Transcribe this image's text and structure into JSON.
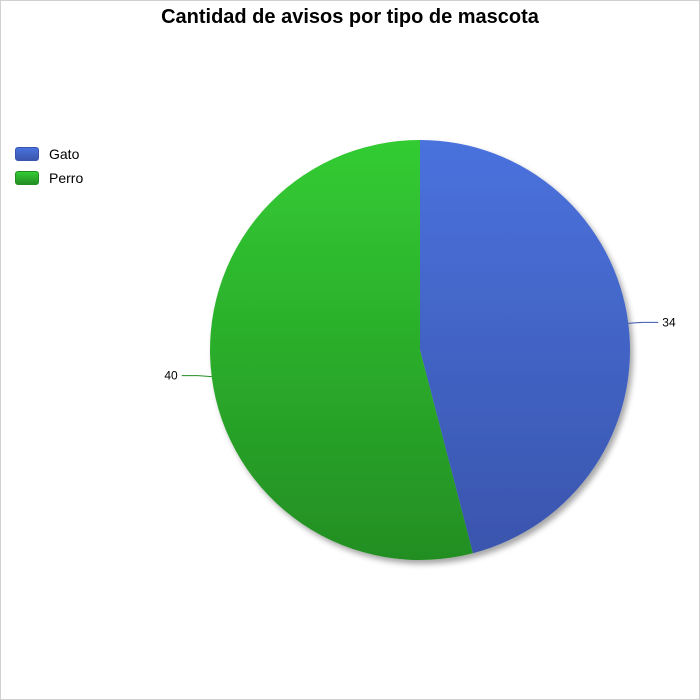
{
  "chart_data": {
    "type": "pie",
    "title": "Cantidad de avisos por tipo de mascota",
    "legend_position": "left",
    "slices": [
      {
        "label": "Gato",
        "value": 34,
        "color": "#4a72dd",
        "color_dark": "#3a55ad"
      },
      {
        "label": "Perro",
        "value": 40,
        "color": "#33cc33",
        "color_dark": "#238e23"
      }
    ]
  }
}
